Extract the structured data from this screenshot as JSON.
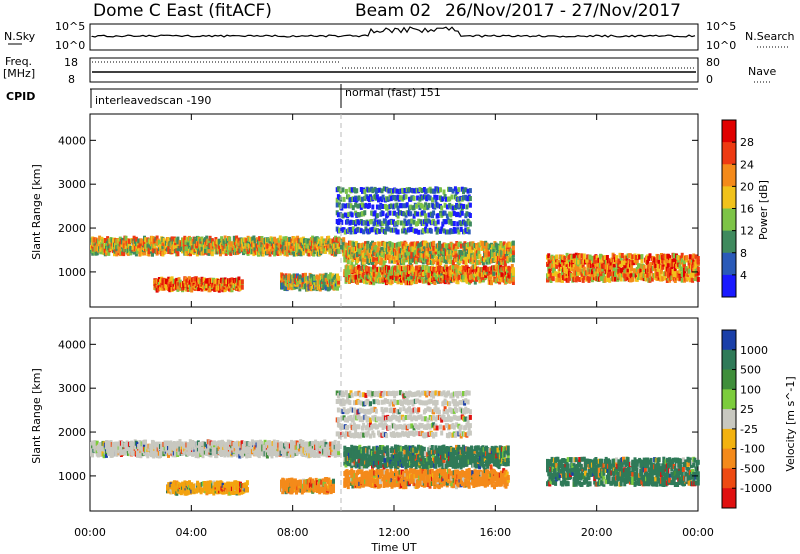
{
  "header": {
    "station": "Dome C East (fitACF)",
    "beam": "Beam 02",
    "date_range": "26/Nov/2017 - 27/Nov/2017"
  },
  "top_panels": {
    "nsky_label": "N.Sky",
    "nsky_ticks": [
      "10^5",
      "10^0"
    ],
    "nsearch_label": "N.Search",
    "nsearch_ticks": [
      "10^5",
      "10^0"
    ],
    "freq_label": "Freq.",
    "freq_unit": "[MHz]",
    "freq_ticks": [
      "18",
      "8"
    ],
    "nave_label": "Nave",
    "nave_ticks": [
      "80",
      "0"
    ],
    "cpid_label": "CPID",
    "cpid_modes": [
      {
        "name": "interleavedscan -190",
        "start_hour": 0
      },
      {
        "name": "normal (fast) 151",
        "start_hour": 10
      }
    ]
  },
  "chart_data": [
    {
      "type": "heatmap",
      "name": "power-panel",
      "ylabel": "Slant Range [km]",
      "xlabel": "Time UT",
      "ylim": [
        200,
        4600
      ],
      "yticks": [
        "1000",
        "2000",
        "3000",
        "4000"
      ],
      "xticks": [
        "00:00",
        "04:00",
        "08:00",
        "12:00",
        "16:00",
        "20:00",
        "00:00"
      ],
      "xlim_hours": [
        0,
        24
      ],
      "colorbar_label": "Power [dB]",
      "colorbar_ticks": [
        "4",
        "8",
        "12",
        "16",
        "20",
        "24",
        "28"
      ],
      "colorbar_range": [
        0,
        32
      ],
      "colorbar_colors": [
        "#1a1aff",
        "#2a5ab8",
        "#3f8a5e",
        "#7dc447",
        "#f1c21b",
        "#f48a1a",
        "#ee3a12",
        "#e00000"
      ],
      "scatter_bands": [
        {
          "t0": 0,
          "t1": 10,
          "r0": 1500,
          "r1": 1850,
          "level": 0.55
        },
        {
          "t0": 2.5,
          "t1": 6,
          "r0": 680,
          "r1": 900,
          "level": 0.75
        },
        {
          "t0": 7.5,
          "t1": 9.8,
          "r0": 700,
          "r1": 1000,
          "level": 0.5
        },
        {
          "t0": 10,
          "t1": 16.7,
          "r0": 850,
          "r1": 1200,
          "level": 0.65
        },
        {
          "t0": 10,
          "t1": 16.7,
          "r0": 1300,
          "r1": 1750,
          "level": 0.55
        },
        {
          "t0": 9.7,
          "t1": 15,
          "r0": 2000,
          "r1": 3100,
          "level": 0.2
        },
        {
          "t0": 18,
          "t1": 24,
          "r0": 900,
          "r1": 1500,
          "level": 0.7
        }
      ]
    },
    {
      "type": "heatmap",
      "name": "velocity-panel",
      "ylabel": "Slant Range [km]",
      "xlabel": "Time UT",
      "ylim": [
        200,
        4600
      ],
      "yticks": [
        "1000",
        "2000",
        "3000",
        "4000"
      ],
      "xticks": [
        "00:00",
        "04:00",
        "08:00",
        "12:00",
        "16:00",
        "20:00",
        "00:00"
      ],
      "xlim_hours": [
        0,
        24
      ],
      "colorbar_label": "Velocity [m s^-1]",
      "colorbar_ticks": [
        "1000",
        "500",
        "100",
        "25",
        "-25",
        "-100",
        "-500",
        "-1000"
      ],
      "colorbar_colors": [
        "#1a3fa8",
        "#2f7a58",
        "#3f8e3a",
        "#7ccc3c",
        "#c8c8c0",
        "#f3b20f",
        "#f48a1a",
        "#ee4a12",
        "#e01010"
      ],
      "scatter_bands": [
        {
          "t0": 0,
          "t1": 9.8,
          "r0": 1550,
          "r1": 1850,
          "color": "#c8c8c0"
        },
        {
          "t0": 3,
          "t1": 6.2,
          "r0": 700,
          "r1": 900,
          "color": "#f3a20f"
        },
        {
          "t0": 7.5,
          "t1": 9.6,
          "r0": 720,
          "r1": 980,
          "color": "#f48a1a"
        },
        {
          "t0": 10,
          "t1": 16.5,
          "r0": 850,
          "r1": 1200,
          "color": "#f48a1a"
        },
        {
          "t0": 10,
          "t1": 16.5,
          "r0": 1300,
          "r1": 1750,
          "color": "#2f7a58"
        },
        {
          "t0": 9.7,
          "t1": 15,
          "r0": 2000,
          "r1": 3100,
          "color": "#c8c8c0"
        },
        {
          "t0": 18,
          "t1": 24,
          "r0": 900,
          "r1": 1500,
          "color": "#2f7a58"
        }
      ]
    }
  ]
}
